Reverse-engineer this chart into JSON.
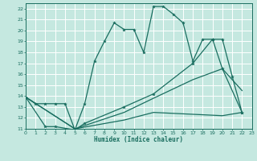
{
  "xlabel": "Humidex (Indice chaleur)",
  "bg_color": "#c5e8e0",
  "grid_color": "#ffffff",
  "line_color": "#1a6e60",
  "xlim": [
    0,
    23
  ],
  "ylim": [
    11,
    22.5
  ],
  "xticks": [
    0,
    1,
    2,
    3,
    4,
    5,
    6,
    7,
    8,
    9,
    10,
    11,
    12,
    13,
    14,
    15,
    16,
    17,
    18,
    19,
    20,
    21,
    22,
    23
  ],
  "yticks": [
    11,
    12,
    13,
    14,
    15,
    16,
    17,
    18,
    19,
    20,
    21,
    22
  ],
  "series1_x": [
    0,
    1,
    2,
    3,
    4,
    5,
    6,
    7,
    8,
    9,
    10,
    11,
    12,
    13,
    14,
    15,
    16,
    17,
    18,
    19,
    20,
    21,
    22
  ],
  "series1_y": [
    13.9,
    13.3,
    13.3,
    13.3,
    13.3,
    10.9,
    13.3,
    17.2,
    19.0,
    20.7,
    20.1,
    20.1,
    18.0,
    22.2,
    22.2,
    21.5,
    20.7,
    17.2,
    19.2,
    19.2,
    19.2,
    15.8,
    12.5
  ],
  "series2_x": [
    0,
    2,
    3,
    5,
    6,
    10,
    13,
    17,
    19,
    20,
    22
  ],
  "series2_y": [
    13.9,
    11.2,
    11.2,
    10.9,
    11.5,
    13.0,
    14.2,
    17.0,
    19.2,
    16.5,
    12.5
  ],
  "series3_x": [
    0,
    5,
    10,
    13,
    17,
    20,
    22
  ],
  "series3_y": [
    13.9,
    11.0,
    12.5,
    13.8,
    15.5,
    16.5,
    14.5
  ],
  "series4_x": [
    0,
    5,
    10,
    13,
    20,
    22
  ],
  "series4_y": [
    13.9,
    11.0,
    11.8,
    12.5,
    12.2,
    12.5
  ]
}
